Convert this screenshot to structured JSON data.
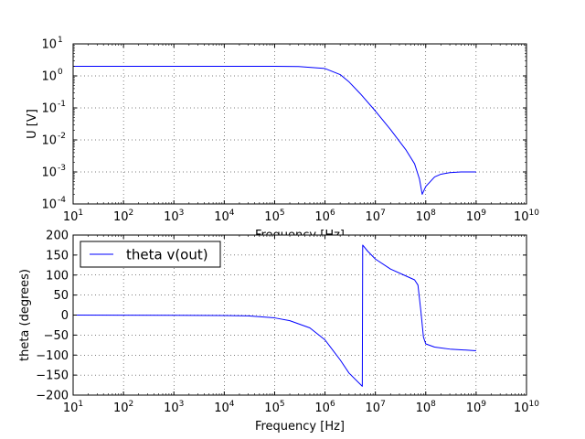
{
  "chart_data": [
    {
      "type": "line",
      "xlabel": "Frequency [Hz]",
      "ylabel": "U [V]",
      "xscale": "log",
      "yscale": "log",
      "xlim": [
        10,
        10000000000
      ],
      "ylim": [
        0.0001,
        10
      ],
      "grid": true,
      "x_ticks": [
        {
          "value": 10,
          "base": "10",
          "exp": "1"
        },
        {
          "value": 100,
          "base": "10",
          "exp": "2"
        },
        {
          "value": 1000,
          "base": "10",
          "exp": "3"
        },
        {
          "value": 10000,
          "base": "10",
          "exp": "4"
        },
        {
          "value": 100000,
          "base": "10",
          "exp": "5"
        },
        {
          "value": 1000000,
          "base": "10",
          "exp": "6"
        },
        {
          "value": 10000000,
          "base": "10",
          "exp": "7"
        },
        {
          "value": 100000000,
          "base": "10",
          "exp": "8"
        },
        {
          "value": 1000000000,
          "base": "10",
          "exp": "9"
        },
        {
          "value": 10000000000,
          "base": "10",
          "exp": "10"
        }
      ],
      "y_ticks": [
        {
          "value": 0.0001,
          "base": "10",
          "exp": "-4"
        },
        {
          "value": 0.001,
          "base": "10",
          "exp": "-3"
        },
        {
          "value": 0.01,
          "base": "10",
          "exp": "-2"
        },
        {
          "value": 0.1,
          "base": "10",
          "exp": "-1"
        },
        {
          "value": 1,
          "base": "10",
          "exp": "0"
        },
        {
          "value": 10,
          "base": "10",
          "exp": "1"
        }
      ],
      "series": [
        {
          "color": "#0000ff",
          "x": [
            10,
            100,
            1000,
            10000,
            100000,
            300000,
            1000000,
            2000000,
            3000000,
            5000000,
            10000000,
            20000000,
            40000000,
            60000000,
            75000000,
            85000000,
            100000000,
            150000000,
            200000000,
            300000000,
            500000000,
            1000000000
          ],
          "y": [
            2,
            2,
            2,
            2,
            1.99,
            1.97,
            1.7,
            1.1,
            0.65,
            0.28,
            0.08,
            0.021,
            0.005,
            0.0018,
            0.0006,
            0.0002,
            0.00035,
            0.0007,
            0.00085,
            0.00095,
            0.001,
            0.001
          ]
        }
      ]
    },
    {
      "type": "line",
      "xlabel": "Frequency [Hz]",
      "ylabel": "theta (degrees)",
      "xscale": "log",
      "yscale": "linear",
      "xlim": [
        10,
        10000000000
      ],
      "ylim": [
        -200,
        200
      ],
      "grid": true,
      "legend": {
        "position": "top-left"
      },
      "x_ticks": [
        {
          "value": 10,
          "base": "10",
          "exp": "1"
        },
        {
          "value": 100,
          "base": "10",
          "exp": "2"
        },
        {
          "value": 1000,
          "base": "10",
          "exp": "3"
        },
        {
          "value": 10000,
          "base": "10",
          "exp": "4"
        },
        {
          "value": 100000,
          "base": "10",
          "exp": "5"
        },
        {
          "value": 1000000,
          "base": "10",
          "exp": "6"
        },
        {
          "value": 10000000,
          "base": "10",
          "exp": "7"
        },
        {
          "value": 100000000,
          "base": "10",
          "exp": "8"
        },
        {
          "value": 1000000000,
          "base": "10",
          "exp": "9"
        },
        {
          "value": 10000000000,
          "base": "10",
          "exp": "10"
        }
      ],
      "y_ticks": [
        {
          "value": -200,
          "label": "−200"
        },
        {
          "value": -150,
          "label": "−150"
        },
        {
          "value": -100,
          "label": "−100"
        },
        {
          "value": -50,
          "label": "−50"
        },
        {
          "value": 0,
          "label": "0"
        },
        {
          "value": 50,
          "label": "50"
        },
        {
          "value": 100,
          "label": "100"
        },
        {
          "value": 150,
          "label": "150"
        },
        {
          "value": 200,
          "label": "200"
        }
      ],
      "series": [
        {
          "name": "theta v(out)",
          "color": "#0000ff",
          "x": [
            10,
            1000,
            10000,
            30000,
            100000,
            200000,
            500000,
            1000000,
            2000000,
            3000000,
            5500000,
            5600000,
            7000000,
            10000000,
            20000000,
            40000000,
            60000000,
            70000000,
            80000000,
            90000000,
            100000000,
            150000000,
            300000000,
            1000000000
          ],
          "y": [
            0,
            -0.5,
            -1,
            -2,
            -7,
            -14,
            -32,
            -62,
            -112,
            -145,
            -178,
            175,
            160,
            140,
            115,
            98,
            88,
            75,
            10,
            -55,
            -72,
            -80,
            -85,
            -89
          ]
        }
      ]
    }
  ]
}
